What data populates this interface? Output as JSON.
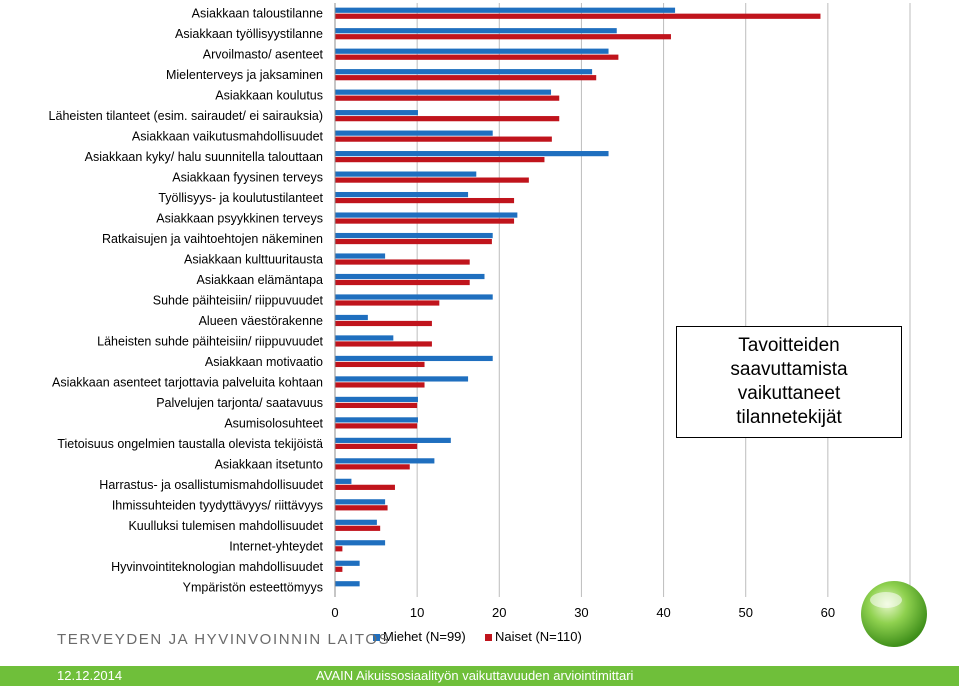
{
  "chart_data": {
    "type": "bar",
    "orientation": "horizontal",
    "categories": [
      "Asiakkaan taloustilanne",
      "Asiakkaan työllisyystilanne",
      "Arvoilmasto/ asenteet",
      "Mielenterveys ja jaksaminen",
      "Asiakkaan koulutus",
      "Läheisten tilanteet (esim. sairaudet/  ei sairauksia)",
      "Asiakkaan vaikutusmahdollisuudet",
      "Asiakkaan kyky/ halu suunnitella talouttaan",
      "Asiakkaan fyysinen terveys",
      "Työllisyys- ja koulutustilanteet",
      "Asiakkaan psyykkinen terveys",
      "Ratkaisujen ja vaihtoehtojen näkeminen",
      "Asiakkaan kulttuuritausta",
      "Asiakkaan elämäntapa",
      "Suhde päihteisiin/ riippuvuudet",
      "Alueen väestörakenne",
      "Läheisten suhde päihteisiin/ riippuvuudet",
      "Asiakkaan motivaatio",
      "Asiakkaan asenteet tarjottavia palveluita kohtaan",
      "Palvelujen tarjonta/ saatavuus",
      "Asumisolosuhteet",
      "Tietoisuus ongelmien taustalla olevista tekijöistä",
      "Asiakkaan itsetunto",
      "Harrastus- ja osallistumismahdollisuudet",
      "Ihmissuhteiden tyydyttävyys/ riittävyys",
      "Kuulluksi tulemisen mahdollisuudet",
      "Internet-yhteydet",
      "Hyvinvointiteknologian mahdollisuudet",
      "Ympäristön esteettömyys"
    ],
    "series": [
      {
        "name": "Miehet (N=99)",
        "color": "#1f6fbf",
        "values": [
          41.4,
          34.3,
          33.3,
          31.3,
          26.3,
          10.1,
          19.2,
          33.3,
          17.2,
          16.2,
          22.2,
          19.2,
          6.1,
          18.2,
          19.2,
          4.0,
          7.1,
          19.2,
          16.2,
          10.1,
          10.1,
          14.1,
          12.1,
          2.0,
          6.1,
          5.1,
          6.1,
          3.0,
          3.0
        ]
      },
      {
        "name": "Naiset (N=110)",
        "color": "#c0141c",
        "values": [
          59.1,
          40.9,
          34.5,
          31.8,
          27.3,
          27.3,
          26.4,
          25.5,
          23.6,
          21.8,
          21.8,
          19.1,
          16.4,
          16.4,
          12.7,
          11.8,
          11.8,
          10.9,
          10.9,
          10.0,
          10.0,
          10.0,
          9.1,
          7.3,
          6.4,
          5.5,
          0.9,
          0.9,
          0.0
        ]
      }
    ],
    "xlim": [
      0,
      70
    ],
    "xticks": [
      0,
      10,
      20,
      30,
      40,
      50,
      60,
      70
    ],
    "grid": true,
    "legend": "bottom"
  },
  "annotation": {
    "text": "Tavoitteiden saavuttamista vaikuttaneet tilannetekijät"
  },
  "branding": {
    "org_name": "TERVEYDEN JA HYVINVOINNIN LAITOS",
    "logo_icon": "green-globe-icon",
    "accent_color": "#6fbf3a"
  },
  "footer": {
    "date": "12.12.2014",
    "title": "AVAIN Aikuissosiaalityön vaikuttavuuden arviointimittari"
  }
}
